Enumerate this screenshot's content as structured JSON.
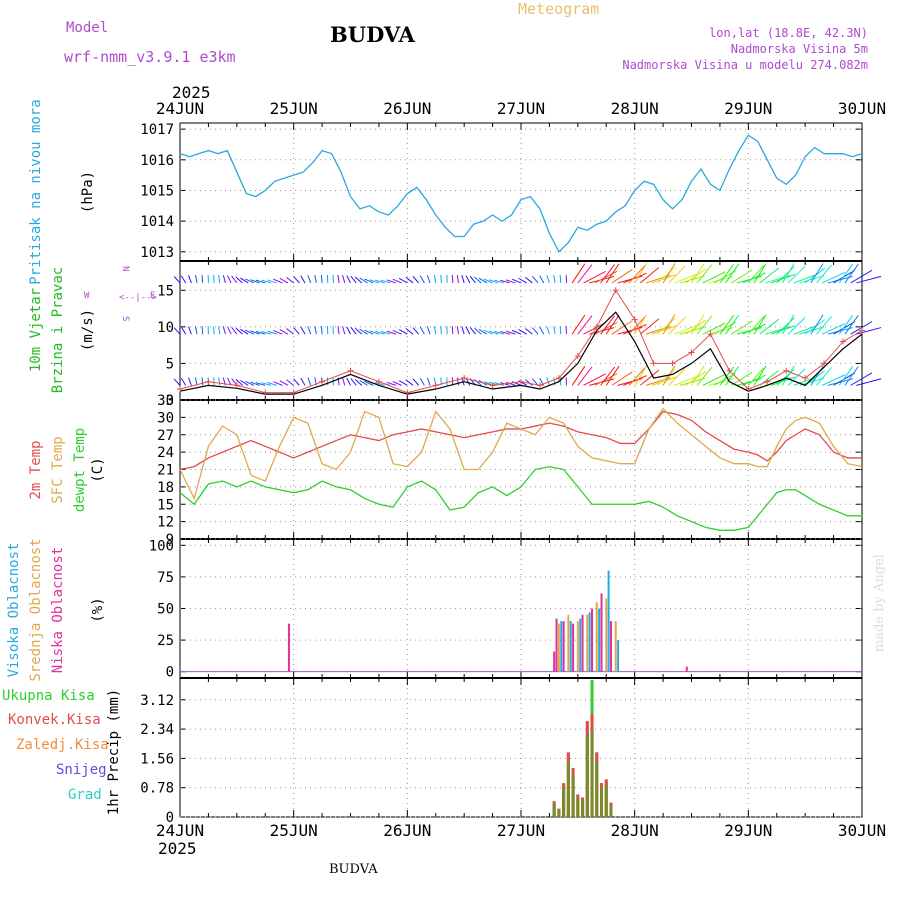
{
  "header": {
    "model_label": "Model",
    "model_name": "wrf-nmm_v3.9.1  e3km",
    "station": "BUDVA",
    "meteogram": "Meteogram",
    "lonlat": "lon,lat (18.8E, 42.3N)",
    "altitude": "Nadmorska Visina 5m",
    "model_altitude": "Nadmorska Visina u modelu 274.082m"
  },
  "footer_station": "BUDVA",
  "credit": "made by Angel",
  "colors": {
    "pressure": "#29a9e0",
    "temp2m": "#e24c4c",
    "sfc": "#e0a84c",
    "dewpt": "#2fcf2f",
    "wind_label": "#22bb22",
    "wind_compass": "#b04ad0",
    "high_cloud": "#29a9e0",
    "mid_cloud": "#e0a84c",
    "low_cloud": "#e0309a",
    "total_precip": "#2fcf2f",
    "convective": "#e24c4c",
    "freezing": "#f28c3c",
    "snow": "#5a4ce0",
    "hail": "#2ccfc8"
  },
  "chart_data": [
    {
      "type": "line",
      "panel": "pressure",
      "ylabel": "Pritisak na nivou mora",
      "units": "(hPa)",
      "top_year": "2025",
      "bottom_year": "2025",
      "x_tick_labels": [
        "24JUN",
        "25JUN",
        "26JUN",
        "27JUN",
        "28JUN",
        "29JUN",
        "30JUN"
      ],
      "ylim": [
        1012.7,
        1017.2
      ],
      "y_ticks": [
        "1013",
        "1014",
        "1015",
        "1016",
        "1017"
      ],
      "x_hours": [
        0,
        2,
        4,
        6,
        8,
        10,
        12,
        14,
        16,
        18,
        20,
        22,
        24,
        26,
        28,
        30,
        32,
        34,
        36,
        38,
        40,
        42,
        44,
        46,
        48,
        50,
        52,
        54,
        56,
        58,
        60,
        62,
        64,
        66,
        68,
        70,
        72,
        74,
        76,
        78,
        80,
        82,
        84,
        86,
        88,
        90,
        92,
        94,
        96,
        98,
        100,
        102,
        104,
        106,
        108,
        110,
        112,
        114,
        116,
        118,
        120,
        122,
        124,
        126,
        128,
        130,
        132,
        134,
        136,
        138,
        140,
        142,
        144
      ],
      "values": [
        1016.2,
        1016.1,
        1016.2,
        1016.3,
        1016.2,
        1016.3,
        1015.6,
        1014.9,
        1014.8,
        1015.0,
        1015.3,
        1015.4,
        1015.5,
        1015.6,
        1015.9,
        1016.3,
        1016.2,
        1015.6,
        1014.8,
        1014.4,
        1014.5,
        1014.3,
        1014.2,
        1014.5,
        1014.9,
        1015.1,
        1014.7,
        1014.2,
        1013.8,
        1013.5,
        1013.5,
        1013.9,
        1014.0,
        1014.2,
        1014.0,
        1014.2,
        1014.7,
        1014.8,
        1014.4,
        1013.6,
        1013.0,
        1013.3,
        1013.8,
        1013.7,
        1013.9,
        1014.0,
        1014.3,
        1014.5,
        1015.0,
        1015.3,
        1015.2,
        1014.7,
        1014.4,
        1014.7,
        1015.3,
        1015.7,
        1015.2,
        1015.0,
        1015.7,
        1016.3,
        1016.8,
        1016.6,
        1016.0,
        1015.4,
        1015.2,
        1015.5,
        1016.1,
        1016.4,
        1016.2,
        1016.2,
        1016.2,
        1016.1,
        1016.2
      ]
    },
    {
      "type": "line",
      "panel": "wind",
      "ylabel_1": "10m Vjetar",
      "ylabel_2": "Brzina i Pravac",
      "units": "(m/s)",
      "compass_n": "N",
      "compass_w": "W",
      "compass_e": "E",
      "compass_s": "S",
      "ylim": [
        0,
        19
      ],
      "y_ticks": [
        "0",
        "5",
        "10",
        "15"
      ],
      "x_hours": [
        0,
        6,
        12,
        18,
        24,
        30,
        36,
        42,
        48,
        54,
        60,
        66,
        72,
        76,
        80,
        84,
        88,
        92,
        96,
        100,
        104,
        108,
        112,
        116,
        120,
        124,
        128,
        132,
        136,
        140,
        144
      ],
      "speed": [
        1.5,
        2.5,
        2.0,
        1.0,
        1.0,
        2.5,
        4.0,
        2.5,
        1.0,
        2.0,
        3.0,
        2.0,
        2.5,
        2.0,
        3.0,
        6.0,
        10.0,
        15.0,
        11.0,
        5.0,
        5.0,
        6.5,
        9.0,
        4.0,
        1.5,
        2.5,
        4.0,
        3.0,
        5.0,
        8.0,
        9.5
      ],
      "gust": [
        1.2,
        2.0,
        1.6,
        0.8,
        0.8,
        2.0,
        3.5,
        2.0,
        0.8,
        1.5,
        2.5,
        1.5,
        2.0,
        1.5,
        2.5,
        5.0,
        9.5,
        12.0,
        8.0,
        3.0,
        3.5,
        5.0,
        7.0,
        2.5,
        1.2,
        2.0,
        3.0,
        2.0,
        4.5,
        7.0,
        9.0
      ],
      "barb_rows": [
        16,
        9,
        2
      ]
    },
    {
      "type": "line",
      "panel": "temperature",
      "ylabel_1": "2m Temp",
      "ylabel_2": "SFC Temp",
      "ylabel_3": "dewpt Temp",
      "units": "(C)",
      "ylim": [
        9,
        33
      ],
      "y_ticks": [
        "9",
        "12",
        "15",
        "18",
        "21",
        "24",
        "27",
        "30",
        "33"
      ],
      "x_hours": [
        0,
        3,
        6,
        9,
        12,
        15,
        18,
        21,
        24,
        27,
        30,
        33,
        36,
        39,
        42,
        45,
        48,
        51,
        54,
        57,
        60,
        63,
        66,
        69,
        72,
        75,
        78,
        81,
        84,
        87,
        90,
        93,
        96,
        99,
        102,
        105,
        108,
        111,
        114,
        117,
        120,
        122,
        124,
        126,
        128,
        130,
        132,
        135,
        138,
        141,
        144
      ],
      "temp2m": [
        21,
        21.5,
        23,
        24,
        25,
        26,
        25,
        24,
        23,
        24,
        25,
        26,
        27,
        26.5,
        26,
        27,
        27.5,
        28,
        27.5,
        27,
        26.5,
        27,
        27.5,
        28,
        28,
        28.5,
        29,
        28.5,
        27.5,
        27,
        26.5,
        25.5,
        25.5,
        28,
        31,
        30.5,
        29.5,
        27.5,
        26,
        24.5,
        24,
        23.5,
        22.5,
        24,
        26,
        27,
        28,
        27,
        24,
        23,
        23
      ],
      "sfc": [
        21,
        16,
        25,
        28.5,
        27,
        20,
        19,
        25,
        30,
        29,
        22,
        21,
        24,
        31,
        30,
        22,
        21.5,
        24,
        31,
        28,
        21,
        21,
        24,
        29,
        28,
        27,
        30,
        29,
        25,
        23,
        22.5,
        22,
        22,
        28,
        31.5,
        29,
        27,
        25,
        23,
        22,
        22,
        21.5,
        21.5,
        25,
        28,
        29.5,
        30,
        29,
        25,
        22,
        21.5
      ],
      "dewpt": [
        17,
        15,
        18.5,
        19,
        18,
        19,
        18,
        17.5,
        17,
        17.5,
        19,
        18,
        17.5,
        16,
        15,
        14.5,
        18,
        19,
        17.5,
        14,
        14.5,
        17,
        18,
        16.5,
        18,
        21,
        21.5,
        21,
        18,
        15,
        15,
        15,
        15,
        15.5,
        14.5,
        13,
        12,
        11,
        10.5,
        10.5,
        11,
        13,
        15,
        17,
        17.5,
        17.5,
        16.5,
        15,
        14,
        13,
        13
      ]
    },
    {
      "type": "bar",
      "panel": "cloud",
      "ylabel_1": "Visoka Oblacnost",
      "ylabel_2": "Srednja Oblacnost",
      "ylabel_3": "Niska Oblacnost",
      "units": "(%)",
      "ylim": [
        -5,
        105
      ],
      "y_ticks": [
        "0",
        "25",
        "50",
        "75",
        "100"
      ],
      "high_x": [
        80.5,
        82.5,
        84.5,
        86.5,
        88.5,
        90.5,
        92.5
      ],
      "high_v": [
        40,
        40,
        42,
        47,
        50,
        80,
        25
      ],
      "mid_x": [
        80,
        82,
        84,
        86,
        88,
        90,
        92
      ],
      "mid_v": [
        38,
        45,
        40,
        45,
        55,
        58,
        40
      ],
      "low_x": [
        23,
        79,
        79.5,
        81,
        83,
        85,
        87,
        89,
        91,
        107
      ],
      "low_v": [
        38,
        16,
        42,
        40,
        38,
        45,
        50,
        62,
        40,
        4
      ]
    },
    {
      "type": "bar",
      "panel": "precip",
      "ylabel_1": "Ukupna Kisa",
      "ylabel_2": "Konvek.Kisa",
      "ylabel_3": "Zaledj.Kisa",
      "ylabel_4": "Snijeg",
      "ylabel_5": "Grad",
      "units": "1hr Precip (mm)",
      "ylim": [
        0,
        3.7
      ],
      "y_ticks": [
        "0",
        "0.78",
        "1.56",
        "2.34",
        "3.12"
      ],
      "total_x": [
        79,
        80,
        81,
        82,
        83,
        84,
        85,
        86,
        87,
        88,
        89,
        90,
        91
      ],
      "total_v": [
        0.42,
        0.22,
        0.9,
        1.72,
        1.3,
        0.6,
        0.52,
        2.55,
        3.65,
        1.72,
        0.9,
        1.0,
        0.38
      ],
      "conv_v": [
        0.42,
        0.22,
        0.9,
        1.72,
        1.3,
        0.6,
        0.52,
        2.55,
        2.75,
        1.72,
        0.9,
        1.0,
        0.38
      ]
    }
  ]
}
